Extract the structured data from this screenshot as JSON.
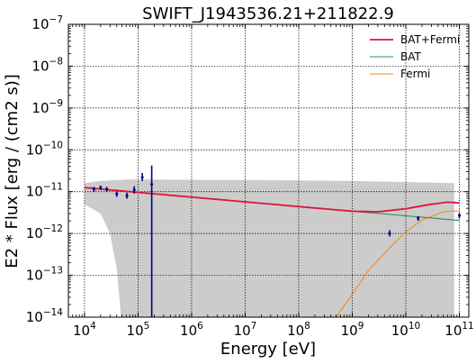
{
  "chart_data": {
    "type": "line",
    "title": "SWIFT_J1943536.21+211822.9",
    "xlabel": "Energy [eV]",
    "ylabel": "E2 * Flux [erg / (cm2 s)]",
    "xscale": "log",
    "yscale": "log",
    "xlim": [
      5000,
      150000000000
    ],
    "ylim": [
      1e-14,
      1e-07
    ],
    "grid": true,
    "legend_position": "top-right",
    "x_ticks": [
      {
        "exp": 4,
        "text": "10",
        "sup": "4"
      },
      {
        "exp": 5,
        "text": "10",
        "sup": "5"
      },
      {
        "exp": 6,
        "text": "10",
        "sup": "6"
      },
      {
        "exp": 7,
        "text": "10",
        "sup": "7"
      },
      {
        "exp": 8,
        "text": "10",
        "sup": "8"
      },
      {
        "exp": 9,
        "text": "10",
        "sup": "9"
      },
      {
        "exp": 10,
        "text": "10",
        "sup": "10"
      },
      {
        "exp": 11,
        "text": "10",
        "sup": "11"
      }
    ],
    "y_ticks": [
      {
        "exp": -14,
        "text": "10",
        "sup": "−14"
      },
      {
        "exp": -13,
        "text": "10",
        "sup": "−13"
      },
      {
        "exp": -12,
        "text": "10",
        "sup": "−12"
      },
      {
        "exp": -11,
        "text": "10",
        "sup": "−11"
      },
      {
        "exp": -10,
        "text": "10",
        "sup": "−10"
      },
      {
        "exp": -9,
        "text": "10",
        "sup": "−9"
      },
      {
        "exp": -8,
        "text": "10",
        "sup": "−8"
      },
      {
        "exp": -7,
        "text": "10",
        "sup": "−7"
      }
    ],
    "series": [
      {
        "name": "BAT+Fermi",
        "color": "#dc143c",
        "x": [
          10000,
          100000,
          1000000,
          10000000,
          100000000,
          1000000000,
          3000000000,
          10000000000,
          30000000000,
          60000000000,
          100000000000
        ],
        "y": [
          1.25e-11,
          9.6e-12,
          7.4e-12,
          5.7e-12,
          4.4e-12,
          3.4e-12,
          3.3e-12,
          3.9e-12,
          5e-12,
          5.6e-12,
          5.4e-12
        ]
      },
      {
        "name": "BAT",
        "color": "#2e8b57",
        "x": [
          10000,
          100000,
          1000000,
          10000000,
          100000000,
          1000000000,
          10000000000,
          100000000000
        ],
        "y": [
          1.25e-11,
          9.6e-12,
          7.4e-12,
          5.7e-12,
          4.4e-12,
          3.4e-12,
          2.65e-12,
          2.05e-12
        ]
      },
      {
        "name": "Fermi",
        "color": "#f28c1b",
        "x": [
          500000000,
          1000000000,
          2000000000,
          5000000000,
          10000000000,
          20000000000,
          50000000000,
          100000000000
        ],
        "y": [
          1e-14,
          3.5e-14,
          1.3e-13,
          4.6e-13,
          1.1e-12,
          2.1e-12,
          3.3e-12,
          3.5e-12
        ]
      }
    ],
    "confidence_band": {
      "color": "#cccccc",
      "x": [
        10000,
        20000,
        30000,
        40000,
        48000,
        60000,
        100000,
        200000,
        1000000,
        10000000,
        100000000,
        1000000000,
        10000000000,
        30000000000,
        80000000000
      ],
      "upper": [
        1.6e-11,
        1.8e-11,
        1.85e-11,
        1.9e-11,
        1.9e-11,
        1.95e-11,
        1.95e-11,
        1.95e-11,
        1.92e-11,
        1.9e-11,
        1.85e-11,
        1.8e-11,
        1.7e-11,
        1.65e-11,
        1.6e-11
      ],
      "lower": [
        5e-12,
        3e-12,
        1e-12,
        1.5e-13,
        1e-14,
        1e-14,
        1e-14,
        1e-14,
        1e-14,
        1e-14,
        1e-14,
        1e-14,
        1e-14,
        1e-14,
        1e-14
      ]
    },
    "data_points": {
      "color": "#00008b",
      "points": [
        {
          "x": 15000,
          "y": 1.15e-11,
          "lo": 1e-11,
          "hi": 1.3e-11
        },
        {
          "x": 20000,
          "y": 1.25e-11,
          "lo": 1.1e-11,
          "hi": 1.4e-11
        },
        {
          "x": 26000,
          "y": 1.15e-11,
          "lo": 1e-11,
          "hi": 1.3e-11
        },
        {
          "x": 40000,
          "y": 8.8e-12,
          "lo": 7.5e-12,
          "hi": 1e-11
        },
        {
          "x": 62000,
          "y": 8e-12,
          "lo": 6.8e-12,
          "hi": 9.5e-12
        },
        {
          "x": 85000,
          "y": 1.1e-11,
          "lo": 9e-12,
          "hi": 1.35e-11
        },
        {
          "x": 120000,
          "y": 2.2e-11,
          "lo": 1.8e-11,
          "hi": 2.8e-11
        },
        {
          "x": 180000,
          "y": 1.5e-11,
          "lo": 1e-14,
          "hi": 4.2e-11
        },
        {
          "x": 5000000000,
          "y": 1e-12,
          "lo": 8.5e-13,
          "hi": 1.2e-12
        },
        {
          "x": 17000000000,
          "y": 2.3e-12,
          "lo": 2e-12,
          "hi": 2.6e-12
        },
        {
          "x": 100000000000,
          "y": 2.7e-12,
          "lo": 2.3e-12,
          "hi": 3.1e-12
        }
      ]
    }
  }
}
